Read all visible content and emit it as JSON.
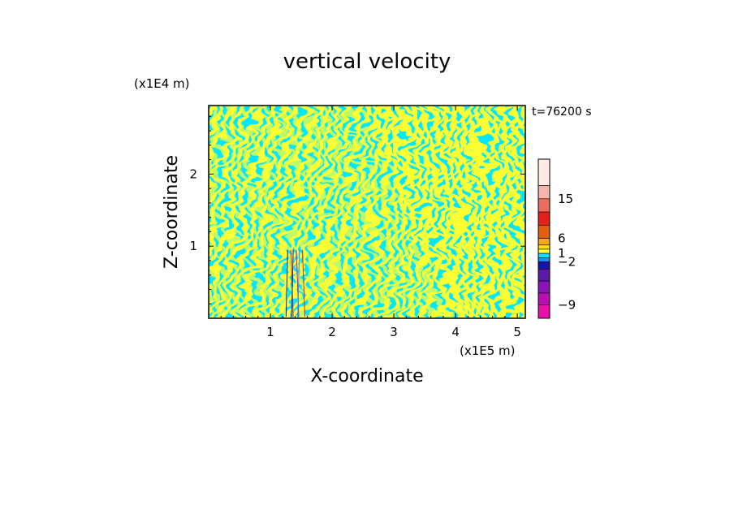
{
  "chart_data": {
    "type": "heatmap",
    "title": "vertical velocity",
    "xlabel": "X-coordinate",
    "ylabel": "Z-coordinate",
    "x_unit": "(x1E5 m)",
    "y_unit": "(x1E4 m)",
    "time_label": "t=76200 s",
    "xlim": [
      0.0,
      5.13
    ],
    "ylim": [
      0.0,
      2.95
    ],
    "x_ticks": [
      "1",
      "2",
      "3",
      "4",
      "5"
    ],
    "x_tick_values": [
      1,
      2,
      3,
      4,
      5
    ],
    "y_ticks": [
      "1",
      "2"
    ],
    "y_tick_values": [
      1,
      2
    ],
    "field_description": "alternating positive/negative vertical velocity bands (gravity waves)",
    "colorbar": {
      "levels_top_to_bottom": [
        {
          "color": "#ffeae6"
        },
        {
          "color": "#f5b4ac"
        },
        {
          "color": "#ec6c5c"
        },
        {
          "color": "#e5201a"
        },
        {
          "color": "#e06010"
        },
        {
          "color": "#f2a818"
        },
        {
          "color": "#ffe000"
        },
        {
          "color": "#ffff33"
        },
        {
          "color": "#00e8ff"
        },
        {
          "color": "#1f8cff"
        },
        {
          "color": "#1414a8"
        },
        {
          "color": "#5a1aa8"
        },
        {
          "color": "#8814b8"
        },
        {
          "color": "#b810b0"
        },
        {
          "color": "#e810a8"
        }
      ],
      "labels": [
        {
          "text": "15",
          "value": 15
        },
        {
          "text": "6",
          "value": 6
        },
        {
          "text": "1",
          "value": 1
        },
        {
          "text": "−2",
          "value": -2
        },
        {
          "text": "−9",
          "value": -9
        }
      ]
    },
    "dominant_colors": {
      "positive": "#ffff33",
      "negative": "#00e8ff"
    }
  }
}
